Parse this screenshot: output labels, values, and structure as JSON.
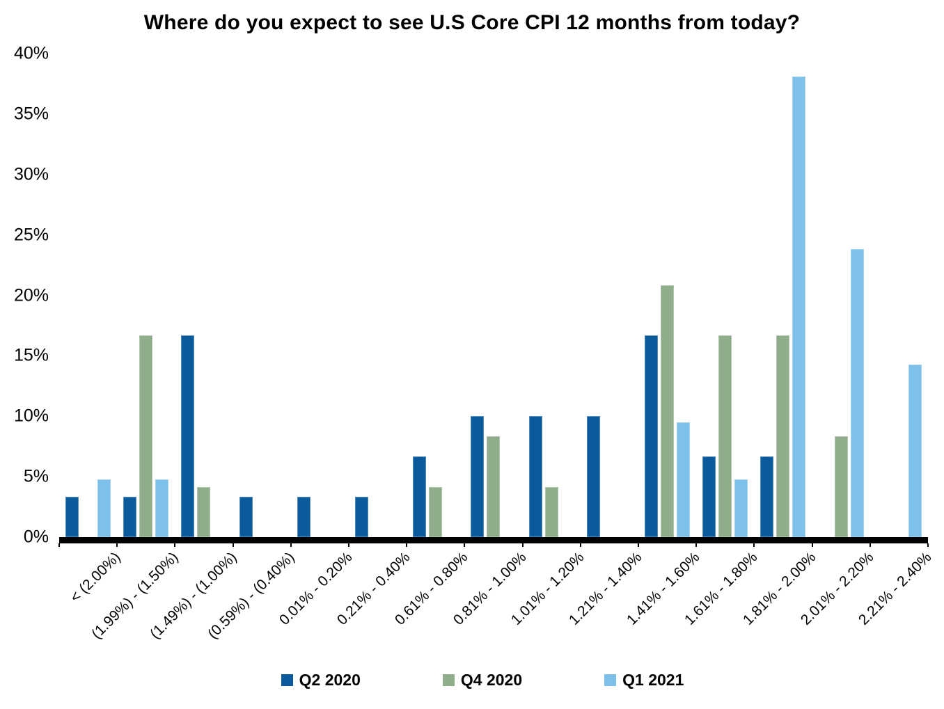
{
  "title": "Where do you expect to see U.S Core CPI 12 months from today?",
  "chart_data": {
    "type": "bar",
    "title": "Where do you expect to see U.S Core CPI 12 months from today?",
    "xlabel": "",
    "ylabel": "",
    "ylim": [
      0,
      40
    ],
    "ytick_step": 5,
    "yticks": [
      "0%",
      "5%",
      "10%",
      "15%",
      "20%",
      "25%",
      "30%",
      "35%",
      "40%"
    ],
    "grid": false,
    "legend_position": "bottom",
    "axis_color": "#000000",
    "background": "#ffffff",
    "categories": [
      "< (2.00%)",
      "(1.99%) - (1.50%)",
      "(1.49%) - (1.00%)",
      "(0.59%) - (0.40%)",
      "0.01% - 0.20%",
      "0.21% - 0.40%",
      "0.61% - 0.80%",
      "0.81% - 1.00%",
      "1.01% - 1.20%",
      "1.21% - 1.40%",
      "1.41% - 1.60%",
      "1.61% - 1.80%",
      "1.81% - 2.00%",
      "2.01% - 2.20%",
      "2.21% - 2.40%"
    ],
    "series": [
      {
        "name": "Q2 2020",
        "color": "#0A5A9C",
        "values": [
          3.33,
          3.33,
          16.67,
          3.33,
          3.33,
          3.33,
          6.67,
          10.0,
          10.0,
          10.0,
          16.67,
          6.67,
          6.67,
          0,
          0
        ]
      },
      {
        "name": "Q4 2020",
        "color": "#8FAC8B",
        "values": [
          0,
          16.67,
          4.17,
          0,
          0,
          0,
          4.17,
          8.33,
          4.17,
          0,
          20.83,
          16.67,
          16.67,
          8.33,
          0
        ]
      },
      {
        "name": "Q1 2021",
        "color": "#7DC0E9",
        "values": [
          4.76,
          4.76,
          0,
          0,
          0,
          0,
          0,
          0,
          0,
          0,
          9.52,
          4.76,
          38.1,
          23.81,
          14.29
        ]
      }
    ]
  }
}
